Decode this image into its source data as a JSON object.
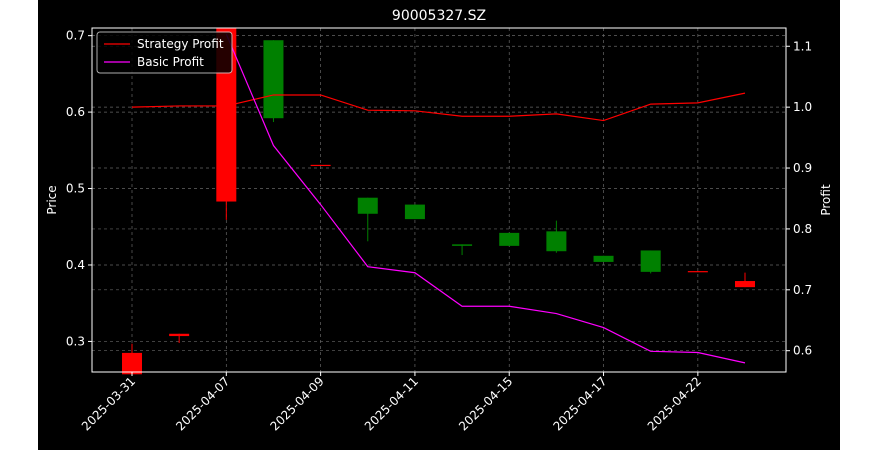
{
  "chart_data": {
    "type": "candlestick",
    "title": "90005327.SZ",
    "ylabel_left": "Price",
    "ylabel_right": "Profit",
    "xlabel": "",
    "grid": true,
    "legend_position": "top-left",
    "ylim_left": [
      0.26,
      0.71
    ],
    "ylim_right": [
      0.565,
      1.13
    ],
    "yticks_left": [
      0.3,
      0.4,
      0.5,
      0.6,
      0.7
    ],
    "yticks_right": [
      0.6,
      0.7,
      0.8,
      0.9,
      1.0,
      1.1
    ],
    "xtick_labels": [
      {
        "index": 0,
        "label": "2025-03-31"
      },
      {
        "index": 2,
        "label": "2025-04-07"
      },
      {
        "index": 4,
        "label": "2025-04-09"
      },
      {
        "index": 6,
        "label": "2025-04-11"
      },
      {
        "index": 8,
        "label": "2025-04-15"
      },
      {
        "index": 10,
        "label": "2025-04-17"
      },
      {
        "index": 12,
        "label": "2025-04-22"
      }
    ],
    "candles": [
      {
        "open": 0.257,
        "close": 0.285,
        "high": 0.297,
        "low": 0.257
      },
      {
        "open": 0.307,
        "close": 0.31,
        "high": 0.31,
        "low": 0.298
      },
      {
        "open": 0.483,
        "close": 0.71,
        "high": 0.71,
        "low": 0.459
      },
      {
        "open": 0.694,
        "close": 0.592,
        "high": 0.694,
        "low": 0.587
      },
      {
        "open": 0.53,
        "close": 0.531,
        "high": 0.531,
        "low": 0.53
      },
      {
        "open": 0.488,
        "close": 0.467,
        "high": 0.488,
        "low": 0.431
      },
      {
        "open": 0.479,
        "close": 0.46,
        "high": 0.479,
        "low": 0.46
      },
      {
        "open": 0.427,
        "close": 0.425,
        "high": 0.427,
        "low": 0.413
      },
      {
        "open": 0.442,
        "close": 0.425,
        "high": 0.442,
        "low": 0.425
      },
      {
        "open": 0.444,
        "close": 0.418,
        "high": 0.458,
        "low": 0.416
      },
      {
        "open": 0.412,
        "close": 0.404,
        "high": 0.412,
        "low": 0.404
      },
      {
        "open": 0.419,
        "close": 0.391,
        "high": 0.419,
        "low": 0.389
      },
      {
        "open": 0.391,
        "close": 0.392,
        "high": 0.392,
        "low": 0.391
      },
      {
        "open": 0.371,
        "close": 0.379,
        "high": 0.39,
        "low": 0.371
      }
    ],
    "series": [
      {
        "name": "Strategy Profit",
        "color": "#ff0000",
        "values": [
          1.0,
          1.002,
          1.002,
          1.02,
          1.02,
          0.995,
          0.994,
          0.985,
          0.985,
          0.989,
          0.978,
          1.005,
          1.007,
          1.023
        ]
      },
      {
        "name": "Basic Profit",
        "color": "#ff00ff",
        "values": [
          null,
          null,
          1.12,
          0.937,
          0.84,
          0.738,
          0.728,
          0.673,
          0.673,
          0.661,
          0.638,
          0.599,
          0.597,
          0.58
        ]
      }
    ],
    "colors": {
      "up": "#ff0000",
      "down": "#008000"
    }
  }
}
